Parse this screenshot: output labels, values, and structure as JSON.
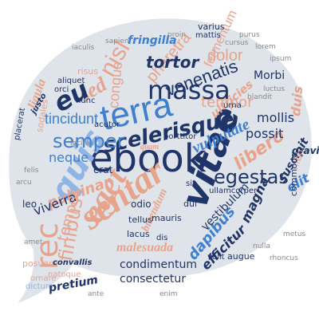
{
  "cloud": {
    "palette": {
      "navy": "#1f3468",
      "blue": "#3f7fd0",
      "light_blue": "#8fb4e6",
      "salmon": "#e7a48c",
      "peach": "#f2c2ad",
      "gray": "#8a8a8a",
      "bubble": "#dfe3ea"
    },
    "words": [
      "ebook",
      "sentar",
      "vitae",
      "terra",
      "massa",
      "eget",
      "quis",
      "nisl",
      "rec",
      "scelerisque",
      "semper",
      "egestas",
      "vulputate",
      "venenatis",
      "tincidunt",
      "finibus",
      "pharetra",
      "sed",
      "congue",
      "tortor",
      "fermentum",
      "dolor",
      "tempor",
      "libero",
      "neque",
      "pulvinar",
      "possit",
      "mollis",
      "ultricies",
      "dapibus",
      "malesuada",
      "viverra",
      "tempus",
      "duis",
      "elit",
      "magna",
      "bibendum",
      "efficitur",
      "condimentum",
      "consectetur",
      "pretium",
      "fringilla",
      "ligula",
      "Morbi",
      "suscipit",
      "gravida",
      "nibh",
      "leo",
      "erat",
      "odio",
      "dui",
      "mauris",
      "tellus",
      "lacus",
      "augue",
      "commodo",
      "posuere",
      "ornare",
      "dictum",
      "natoque",
      "acutor",
      "porttitor",
      "velit",
      "urna",
      "nunc",
      "lacinia",
      "risus",
      "aliquet",
      "orci",
      "sodales",
      "mattis",
      "quam",
      "varius",
      "ullamcorper",
      "vestibulum",
      "convallis",
      "placerat",
      "justo",
      "sit",
      "dis",
      "eu",
      "cursus",
      "blandit",
      "luctus",
      "rhoncus",
      "iaculis",
      "sapien",
      "purus",
      "lorem",
      "ipsum",
      "amet",
      "arcu",
      "felis",
      "metus",
      "nulla",
      "ante",
      "enim",
      "proin"
    ]
  }
}
